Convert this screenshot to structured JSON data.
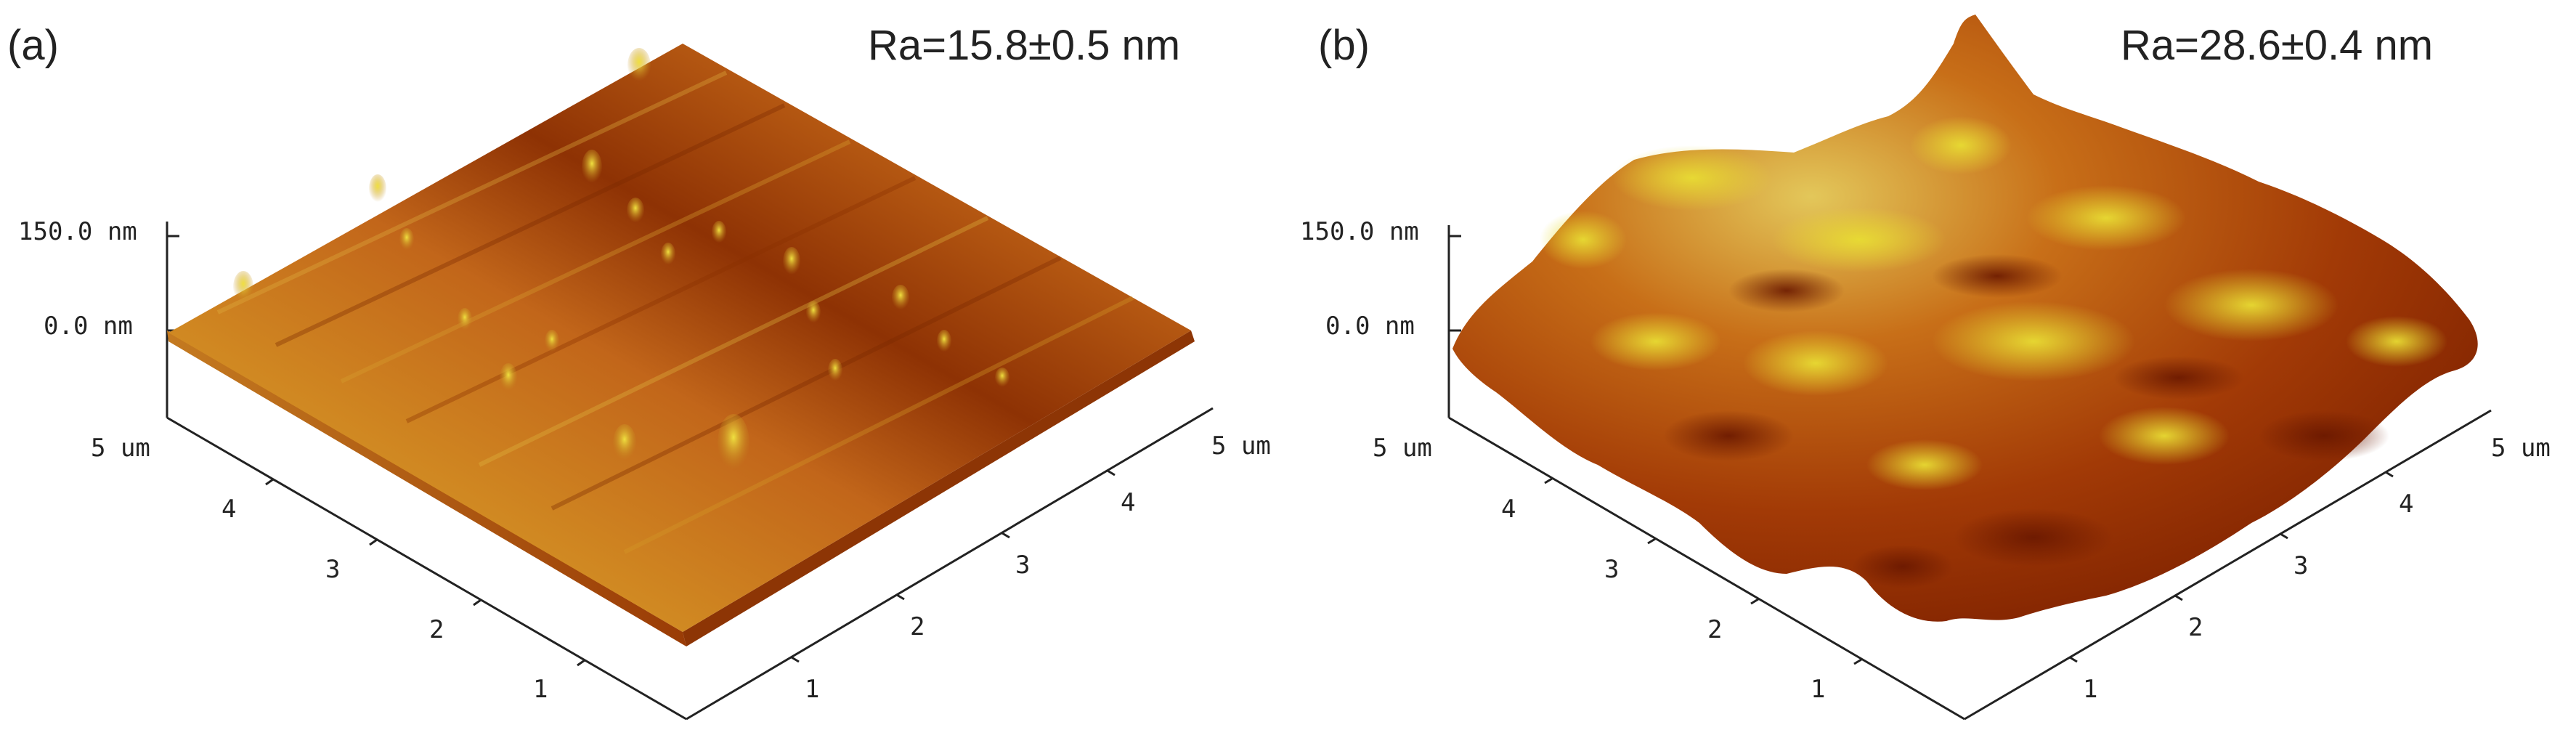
{
  "panels": [
    {
      "label": "(a)",
      "roughness": "Ra=15.8±0.5 nm",
      "z_top": "150.0 nm",
      "z_zero": "0.0 nm",
      "x_ticks": [
        "1",
        "2",
        "3",
        "4",
        "5 um"
      ],
      "y_ticks": [
        "1",
        "2",
        "3",
        "4",
        "5 um"
      ],
      "surface_colors": {
        "dark": "#8a2c00",
        "mid": "#c2661a",
        "light": "#d7a02a",
        "highlight": "#eedd30"
      }
    },
    {
      "label": "(b)",
      "roughness": "Ra=28.6±0.4 nm",
      "z_top": "150.0 nm",
      "z_zero": "0.0 nm",
      "x_ticks": [
        "1",
        "2",
        "3",
        "4",
        "5 um"
      ],
      "y_ticks": [
        "1",
        "2",
        "3",
        "4",
        "5 um"
      ],
      "surface_colors": {
        "dark": "#7a1e00",
        "mid": "#b84d0e",
        "light": "#d18a22",
        "highlight": "#e6d92e"
      }
    }
  ]
}
